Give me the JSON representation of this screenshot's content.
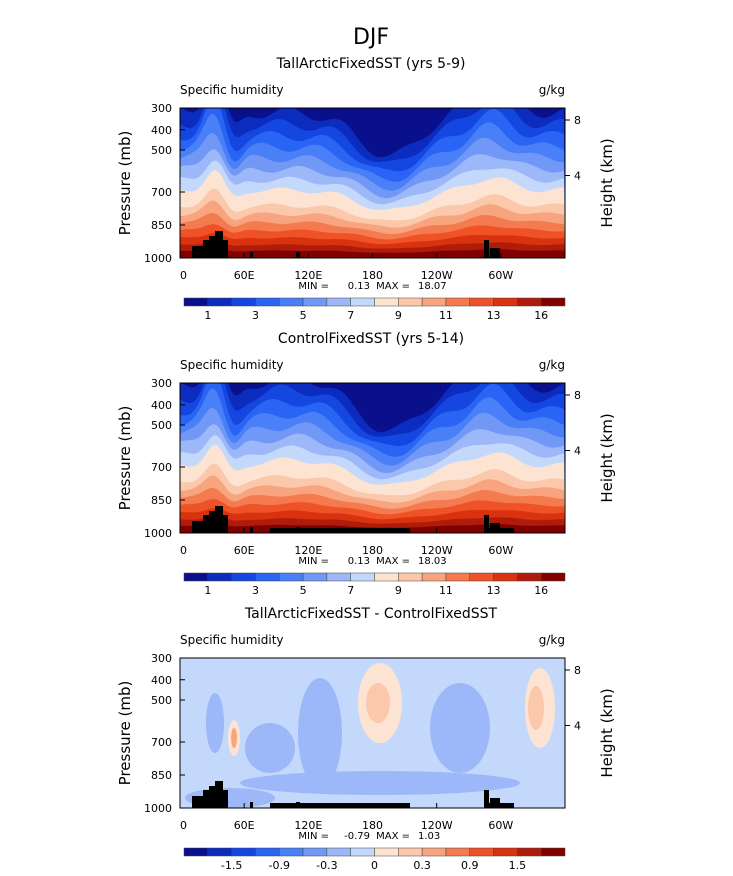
{
  "figure_title": "DJF",
  "chart_data": [
    {
      "type": "heatmap",
      "title": "TallArcticFixedSST (yrs 5-9)",
      "variable": "Specific humidity",
      "units": "g/kg",
      "ylabel": "Pressure (mb)",
      "ylabel_right": "Height (km)",
      "x_ticks": [
        "0",
        "60E",
        "120E",
        "180",
        "120W",
        "60W"
      ],
      "y_ticks": [
        "300",
        "400",
        "500",
        "700",
        "850",
        "1000"
      ],
      "y_right_ticks": [
        "8",
        "4"
      ],
      "min_label": "MIN =",
      "min": "0.13",
      "max_label": "MAX =",
      "max": "18.07",
      "colorbar_labels": [
        "1",
        "3",
        "5",
        "7",
        "9",
        "11",
        "13",
        "16"
      ],
      "kind": "abs"
    },
    {
      "type": "heatmap",
      "title": "ControlFixedSST (yrs 5-14)",
      "variable": "Specific humidity",
      "units": "g/kg",
      "ylabel": "Pressure (mb)",
      "ylabel_right": "Height (km)",
      "x_ticks": [
        "0",
        "60E",
        "120E",
        "180",
        "120W",
        "60W"
      ],
      "y_ticks": [
        "300",
        "400",
        "500",
        "700",
        "850",
        "1000"
      ],
      "y_right_ticks": [
        "8",
        "4"
      ],
      "min_label": "MIN =",
      "min": "0.13",
      "max_label": "MAX =",
      "max": "18.03",
      "colorbar_labels": [
        "1",
        "3",
        "5",
        "7",
        "9",
        "11",
        "13",
        "16"
      ],
      "kind": "abs2"
    },
    {
      "type": "heatmap",
      "title": "TallArcticFixedSST - ControlFixedSST",
      "variable": "Specific humidity",
      "units": "g/kg",
      "ylabel": "Pressure (mb)",
      "ylabel_right": "Height (km)",
      "x_ticks": [
        "0",
        "60E",
        "120E",
        "180",
        "120W",
        "60W"
      ],
      "y_ticks": [
        "300",
        "400",
        "500",
        "700",
        "850",
        "1000"
      ],
      "y_right_ticks": [
        "8",
        "4"
      ],
      "min_label": "MIN =",
      "min": "-0.79",
      "max_label": "MAX =",
      "max": "1.03",
      "colorbar_labels": [
        "-1.5",
        "-0.9",
        "-0.3",
        "0",
        "0.3",
        "0.9",
        "1.5"
      ],
      "kind": "diff"
    }
  ],
  "colors": [
    "#0a0f8c",
    "#0b2cbf",
    "#1446e0",
    "#2a64f5",
    "#4a80f7",
    "#7298f7",
    "#9cb8f8",
    "#c4d8fb",
    "#fde4d2",
    "#fbc8ac",
    "#f8a47e",
    "#f47a50",
    "#ee5226",
    "#d8320e",
    "#b01c0c",
    "#800000"
  ]
}
